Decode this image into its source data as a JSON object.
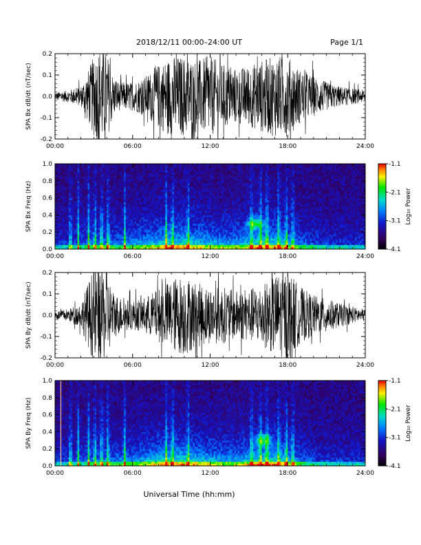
{
  "header": {
    "title": "2018/12/11   00:00–24:00 UT",
    "page": "Page 1/1"
  },
  "xaxis_label": "Universal Time (hh:mm)",
  "colors": {
    "trace": "#000000",
    "frame": "#000000",
    "background": "#ffffff"
  },
  "chart_data": [
    {
      "type": "line",
      "ylabel": "SPA Bx dB/dt (nT/sec)",
      "xlim": [
        0,
        24
      ],
      "ylim": [
        -0.2,
        0.2
      ],
      "xticks": [
        "00:00",
        "06:00",
        "12:00",
        "18:00",
        "24:00"
      ],
      "yticks": [
        "-0.2",
        "-0.1",
        "0.0",
        "0.1",
        "0.2"
      ],
      "envelope": {
        "hour": [
          0,
          1,
          2,
          2.5,
          3,
          3.5,
          4,
          4.5,
          5,
          6,
          7,
          8,
          9,
          10,
          11,
          12,
          13,
          14,
          15,
          16,
          17,
          18,
          19,
          20,
          21,
          22,
          23,
          24
        ],
        "amplitude": [
          0.02,
          0.03,
          0.05,
          0.12,
          0.2,
          0.25,
          0.22,
          0.1,
          0.07,
          0.07,
          0.1,
          0.16,
          0.2,
          0.2,
          0.18,
          0.2,
          0.16,
          0.14,
          0.15,
          0.18,
          0.2,
          0.2,
          0.13,
          0.1,
          0.07,
          0.05,
          0.04,
          0.03
        ]
      }
    },
    {
      "type": "heatmap",
      "ylabel": "SPA Bx Freq (Hz)",
      "xlim": [
        0,
        24
      ],
      "ylim": [
        0,
        1
      ],
      "xticks": [
        "00:00",
        "06:00",
        "12:00",
        "18:00",
        "24:00"
      ],
      "yticks": [
        "0.0",
        "0.2",
        "0.4",
        "0.6",
        "0.8",
        "1.0"
      ],
      "colorbar": {
        "label": "Log₁₀ Power",
        "ticks": [
          "-1.1",
          "-2.1",
          "-3.1",
          "-4.1"
        ],
        "range": [
          -4.1,
          -1.1
        ]
      },
      "features": {
        "hot_bands_hour": [
          1.2,
          1.8,
          2.6,
          3.1,
          3.6,
          4.1,
          5.4,
          8.6,
          9.1,
          10.3,
          15.2,
          15.9,
          16.4,
          17.3,
          17.9,
          18.4
        ],
        "blob": {
          "hour": 15.5,
          "freq": 0.3
        }
      }
    },
    {
      "type": "line",
      "ylabel": "SPA By dB/dt (nT/sec)",
      "xlim": [
        0,
        24
      ],
      "ylim": [
        -0.2,
        0.2
      ],
      "xticks": [
        "00:00",
        "06:00",
        "12:00",
        "18:00",
        "24:00"
      ],
      "yticks": [
        "-0.2",
        "-0.1",
        "0.0",
        "0.1",
        "0.2"
      ],
      "envelope": {
        "hour": [
          0,
          1,
          2,
          2.5,
          3,
          3.5,
          4,
          4.5,
          5,
          6,
          7,
          8,
          9,
          10,
          11,
          12,
          13,
          14,
          15,
          16,
          17,
          18,
          19,
          20,
          21,
          22,
          23,
          24
        ],
        "amplitude": [
          0.02,
          0.03,
          0.06,
          0.15,
          0.24,
          0.26,
          0.22,
          0.12,
          0.09,
          0.07,
          0.09,
          0.13,
          0.18,
          0.2,
          0.16,
          0.14,
          0.14,
          0.12,
          0.13,
          0.15,
          0.2,
          0.22,
          0.14,
          0.1,
          0.08,
          0.06,
          0.04,
          0.03
        ]
      }
    },
    {
      "type": "heatmap",
      "ylabel": "SPA By Freq (Hz)",
      "xlim": [
        0,
        24
      ],
      "ylim": [
        0,
        1
      ],
      "xticks": [
        "00:00",
        "06:00",
        "12:00",
        "18:00",
        "24:00"
      ],
      "yticks": [
        "0.0",
        "0.2",
        "0.4",
        "0.6",
        "0.8",
        "1.0"
      ],
      "colorbar": {
        "label": "Log₁₀ Power",
        "ticks": [
          "-1.1",
          "-2.1",
          "-3.1",
          "-4.1"
        ],
        "range": [
          -4.1,
          -1.1
        ]
      },
      "features": {
        "hot_bands_hour": [
          1.2,
          1.8,
          2.6,
          3.1,
          3.6,
          4.1,
          5.4,
          8.6,
          9.1,
          10.3,
          15.2,
          15.9,
          16.4,
          17.3,
          17.9,
          18.4
        ],
        "blob": {
          "hour": 16.1,
          "freq": 0.3
        },
        "marker_line_hour": 0.45
      }
    }
  ]
}
